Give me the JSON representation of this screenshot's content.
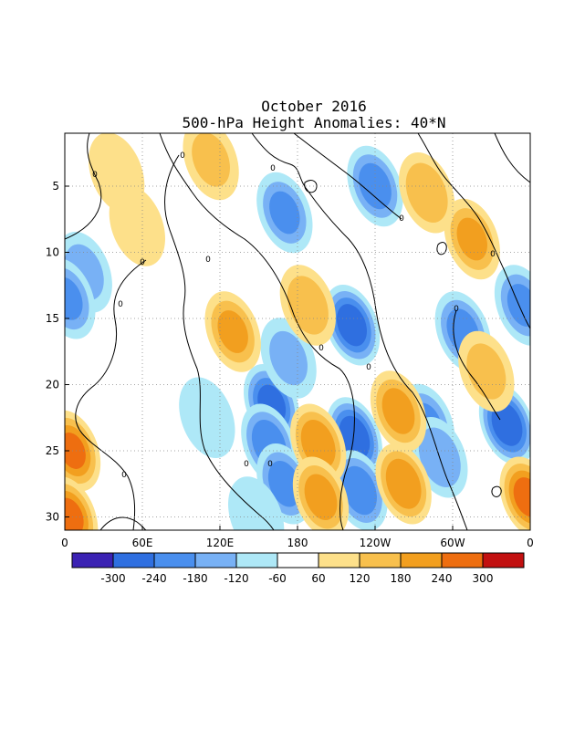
{
  "chart_data": {
    "type": "heatmap",
    "title": "October 2016",
    "subtitle": "500-hPa Height Anomalies: 40*N",
    "x_ticks": [
      "0",
      "60E",
      "120E",
      "180",
      "120W",
      "60W",
      "0"
    ],
    "x_tick_values": [
      0,
      60,
      120,
      180,
      240,
      300,
      360
    ],
    "y_ticks": [
      "5",
      "10",
      "15",
      "20",
      "25",
      "30"
    ],
    "y_tick_values": [
      5,
      10,
      15,
      20,
      25,
      30
    ],
    "xlim": [
      0,
      360
    ],
    "ylim": [
      31,
      1
    ],
    "grid": true,
    "contour_label": "0",
    "colorbar": {
      "labels": [
        "-300",
        "-240",
        "-180",
        "-120",
        "-60",
        "60",
        "120",
        "180",
        "240",
        "300"
      ],
      "colors": [
        "#3b22b3",
        "#2f6fe0",
        "#4a8fee",
        "#78b1f5",
        "#aee8f7",
        "#ffffff",
        "#fde08a",
        "#f8c04d",
        "#f29f1f",
        "#ee6e10",
        "#c21010"
      ]
    },
    "anomalies": [
      {
        "lon": 160,
        "day": 21.5,
        "value": -260
      },
      {
        "lon": 158,
        "day": 24.5,
        "value": -220
      },
      {
        "lon": 170,
        "day": 27.5,
        "value": -200
      },
      {
        "lon": 222,
        "day": 15.5,
        "value": -280
      },
      {
        "lon": 224,
        "day": 24,
        "value": -290
      },
      {
        "lon": 228,
        "day": 28,
        "value": -220
      },
      {
        "lon": 240,
        "day": 5,
        "value": -200
      },
      {
        "lon": 170,
        "day": 7,
        "value": -180
      },
      {
        "lon": 173,
        "day": 18,
        "value": -120
      },
      {
        "lon": 280,
        "day": 23,
        "value": -180
      },
      {
        "lon": 290,
        "day": 25.5,
        "value": -160
      },
      {
        "lon": 308,
        "day": 16,
        "value": -200
      },
      {
        "lon": 342,
        "day": 23,
        "value": -290
      },
      {
        "lon": 354,
        "day": 14,
        "value": -180
      },
      {
        "lon": 15,
        "day": 11.5,
        "value": -130
      },
      {
        "lon": 2,
        "day": 13.5,
        "value": -180
      },
      {
        "lon": 110,
        "day": 22.5,
        "value": -100
      },
      {
        "lon": 148,
        "day": 30,
        "value": -90
      },
      {
        "lon": 196,
        "day": 24.5,
        "value": 220
      },
      {
        "lon": 198,
        "day": 28.5,
        "value": 200
      },
      {
        "lon": 188,
        "day": 14,
        "value": 150
      },
      {
        "lon": 258,
        "day": 22,
        "value": 200
      },
      {
        "lon": 262,
        "day": 27.5,
        "value": 230
      },
      {
        "lon": 315,
        "day": 9,
        "value": 180
      },
      {
        "lon": 280,
        "day": 5.5,
        "value": 160
      },
      {
        "lon": 6,
        "day": 25,
        "value": 240
      },
      {
        "lon": 4,
        "day": 30,
        "value": 250
      },
      {
        "lon": 358,
        "day": 28.5,
        "value": 260
      },
      {
        "lon": 326,
        "day": 19,
        "value": 130
      },
      {
        "lon": 130,
        "day": 16,
        "value": 180
      },
      {
        "lon": 113,
        "day": 3,
        "value": 120
      },
      {
        "lon": 40,
        "day": 4,
        "value": 110
      },
      {
        "lon": 56,
        "day": 8,
        "value": 100
      }
    ]
  }
}
